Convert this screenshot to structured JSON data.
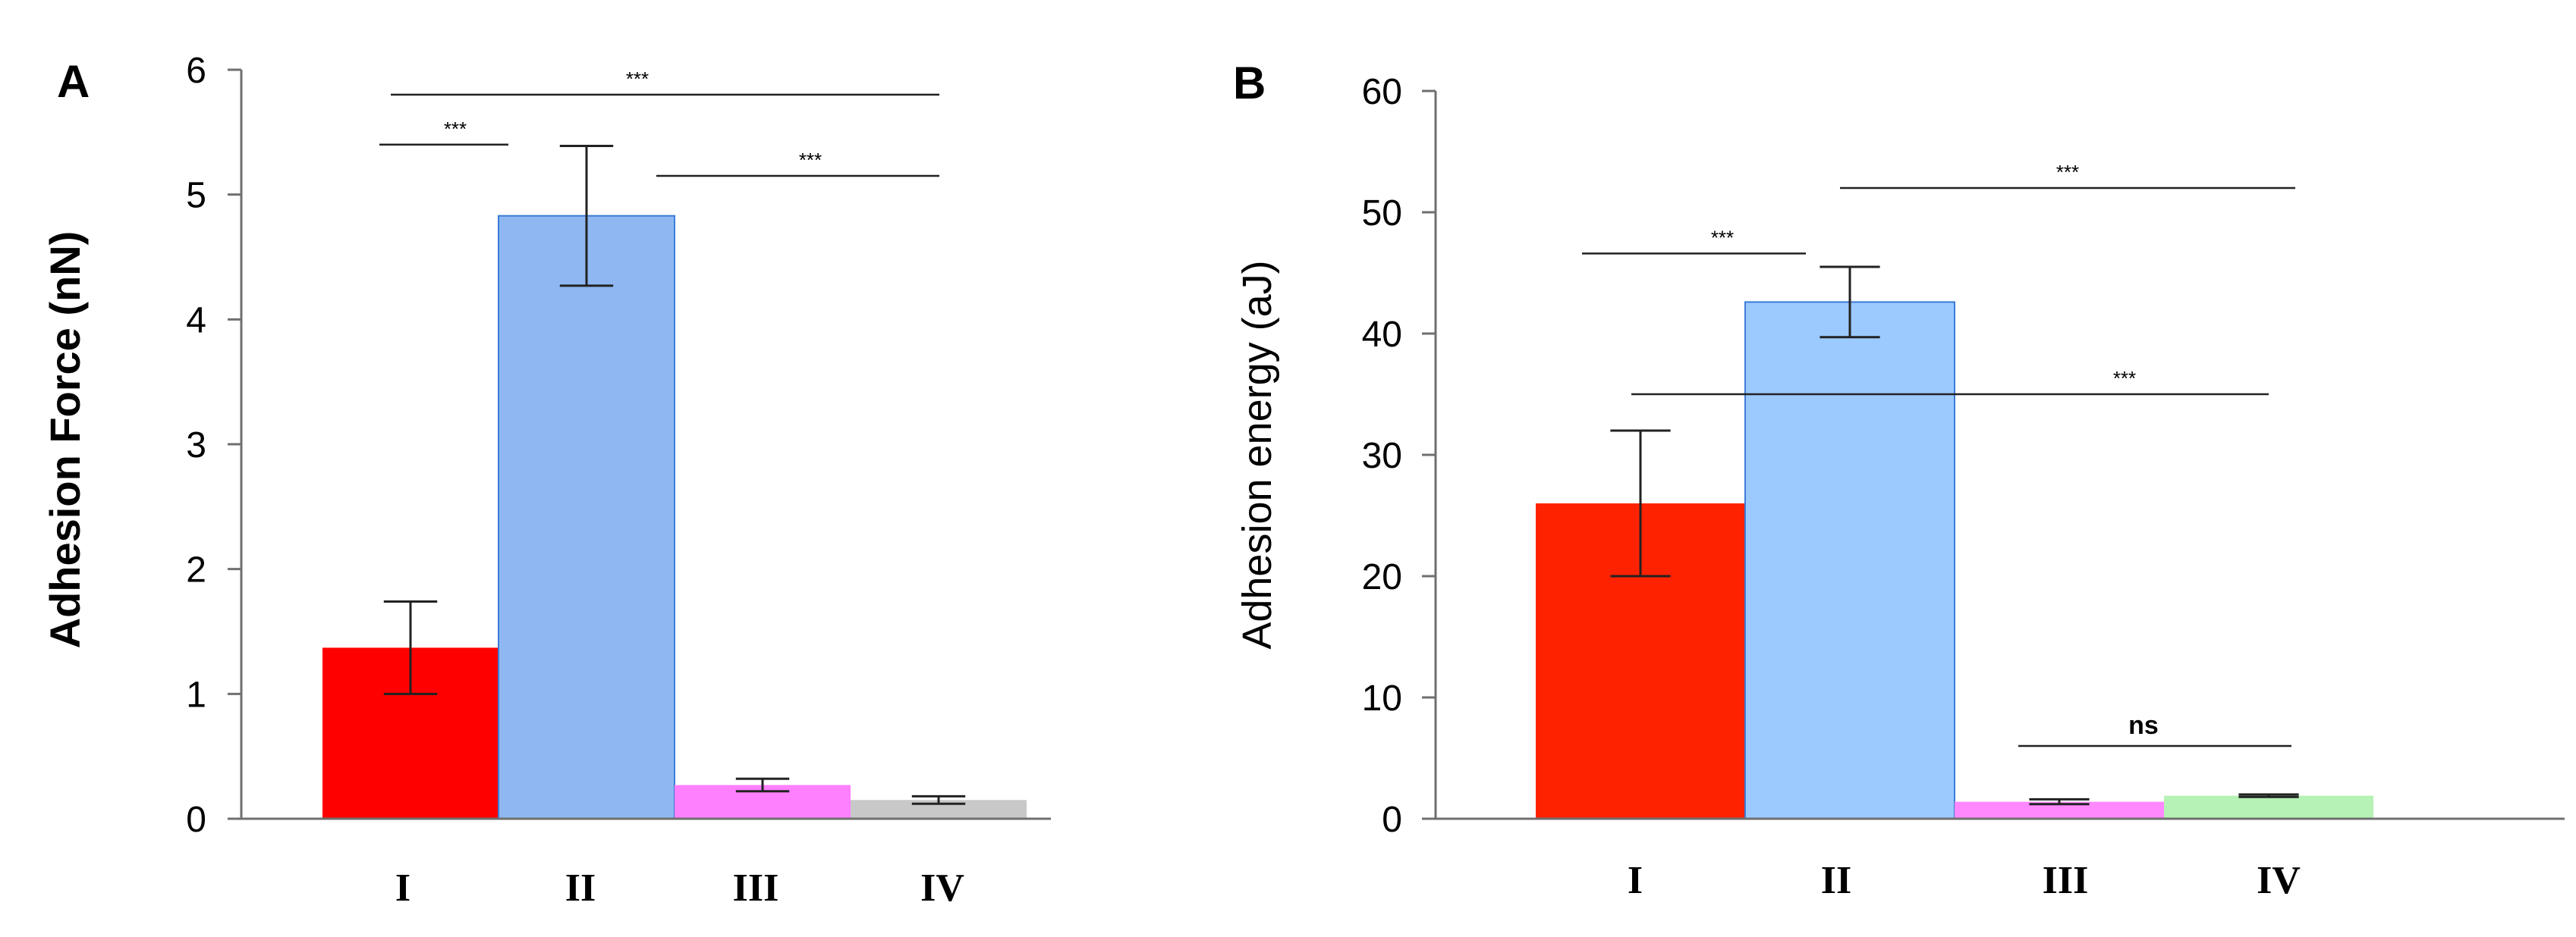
{
  "chart_data": [
    {
      "panel": "A",
      "type": "bar",
      "ylabel": "Adhesion Force (nN)",
      "xlabel": "",
      "ylim": [
        0,
        6
      ],
      "yticks": [
        0,
        1,
        2,
        3,
        4,
        5,
        6
      ],
      "categories": [
        "I",
        "II",
        "III",
        "IV"
      ],
      "values": [
        1.37,
        4.83,
        0.27,
        0.15
      ],
      "errors": [
        0.37,
        0.56,
        0.05,
        0.03
      ],
      "colors": [
        "#ff0000",
        "#8fb8f2",
        "#ff80ff",
        "#c8c8c8"
      ],
      "significance": [
        {
          "from": "I",
          "to": "II",
          "label": "***",
          "y": 5.4
        },
        {
          "from": "I",
          "to": "IV",
          "label": "***",
          "y": 5.8
        },
        {
          "from": "II",
          "to": "IV",
          "label": "***",
          "y": 5.15
        }
      ]
    },
    {
      "panel": "B",
      "type": "bar",
      "ylabel": "Adhesion energy (aJ)",
      "xlabel": "",
      "ylim": [
        0,
        60
      ],
      "yticks": [
        0,
        10,
        20,
        30,
        40,
        50,
        60
      ],
      "categories": [
        "I",
        "II",
        "III",
        "IV"
      ],
      "values": [
        26,
        42.6,
        1.4,
        1.9
      ],
      "errors": [
        6,
        2.9,
        0.2,
        0.1
      ],
      "colors": [
        "#ff2200",
        "#9ccaff",
        "#ff88ff",
        "#b6f2b6"
      ],
      "significance": [
        {
          "from": "I",
          "to": "II",
          "label": "***",
          "y": 46.6
        },
        {
          "from": "II",
          "to": "IV",
          "label": "***",
          "y": 52
        },
        {
          "from": "I",
          "to": "IV",
          "label": "***",
          "y": 35
        },
        {
          "from": "III",
          "to": "IV",
          "label": "ns",
          "y": 6
        }
      ]
    }
  ]
}
